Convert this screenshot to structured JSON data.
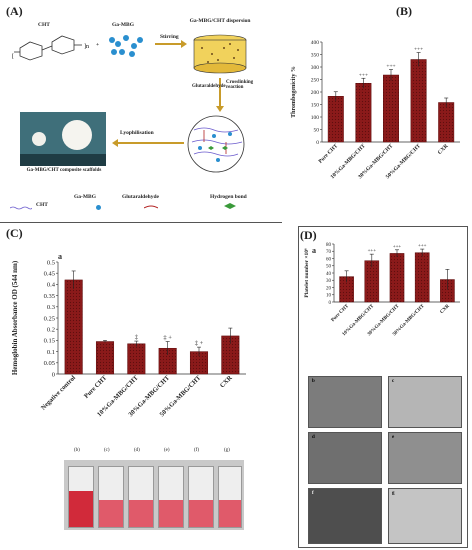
{
  "panels": {
    "A": {
      "letter": "(A)",
      "labels": {
        "cht": "CHT",
        "gamgb": "Ga-MBG",
        "stirring": "Stirring",
        "dispersion": "Ga-MBG/CHT dispersion",
        "crosslinking": "Crosslinking reaction",
        "glutaraldehyde_v": "Glutaraldehyde",
        "lyophilisation": "Lyophilisation",
        "scaffold": "Ga-MBG/CHT composite scaffolds",
        "cm": "cm"
      },
      "legend": [
        "CHT",
        "Ga-MBG",
        "Glutaraldehyde",
        "Hydrogen bond"
      ]
    },
    "B": {
      "letter": "(B)"
    },
    "C": {
      "letter": "(C)",
      "sublabel": "a",
      "vials": [
        "(b)",
        "(c)",
        "(d)",
        "(e)",
        "(f)",
        "(g)"
      ]
    },
    "D": {
      "letter": "(D)",
      "sublabel": "a",
      "sem": [
        "b",
        "c",
        "d",
        "e",
        "f",
        "g"
      ]
    }
  },
  "colors": {
    "bar": "#8b1a1a",
    "bar_dark": "#5e0d0d"
  },
  "chart_data": [
    {
      "id": "B",
      "type": "bar",
      "categories": [
        "Pure CHT",
        "10%Ga-MBG/CHT",
        "30%Ga-MBG/CHT",
        "50%Ga-MBG/CHT",
        "CXR"
      ],
      "values": [
        183,
        235,
        268,
        330,
        158
      ],
      "errors": [
        18,
        20,
        22,
        28,
        18
      ],
      "annotations": [
        "",
        "+++",
        "+++",
        "+++",
        ""
      ],
      "ylabel": "Thrombogenicity %",
      "ylim": [
        0,
        400
      ],
      "yticks": [
        0,
        50,
        100,
        150,
        200,
        250,
        300,
        350,
        400
      ]
    },
    {
      "id": "C",
      "type": "bar",
      "categories": [
        "Negative control",
        "Pure CHT",
        "10%Ga-MBG/CHT",
        "30%Ga-MBG/CHT",
        "50%Ga-MBG/CHT",
        "CXR"
      ],
      "values": [
        0.42,
        0.145,
        0.135,
        0.115,
        0.1,
        0.17
      ],
      "errors": [
        0.04,
        0.005,
        0.012,
        0.03,
        0.02,
        0.035
      ],
      "annotations": [
        "",
        "",
        "‡",
        "‡ +",
        "‡ +",
        ""
      ],
      "ylabel": "Hemoglobin Absorbance OD (544 nm)",
      "ylim": [
        0,
        0.5
      ],
      "yticks": [
        0,
        0.05,
        0.1,
        0.15,
        0.2,
        0.25,
        0.3,
        0.35,
        0.4,
        0.45,
        0.5
      ]
    },
    {
      "id": "D",
      "type": "bar",
      "categories": [
        "Pure CHT",
        "10%Ga-MBG/CHT",
        "30%Ga-MBG/CHT",
        "50%Ga-MBG/CHT",
        "CXR"
      ],
      "values": [
        35,
        57,
        67,
        68,
        31
      ],
      "errors": [
        8,
        9,
        5,
        5,
        14
      ],
      "annotations": [
        "",
        "+++",
        "+++",
        "+++",
        ""
      ],
      "ylabel": "Platelet number ×10⁶",
      "ylim": [
        0,
        80
      ],
      "yticks": [
        0,
        10,
        20,
        30,
        40,
        50,
        60,
        70,
        80
      ]
    }
  ]
}
